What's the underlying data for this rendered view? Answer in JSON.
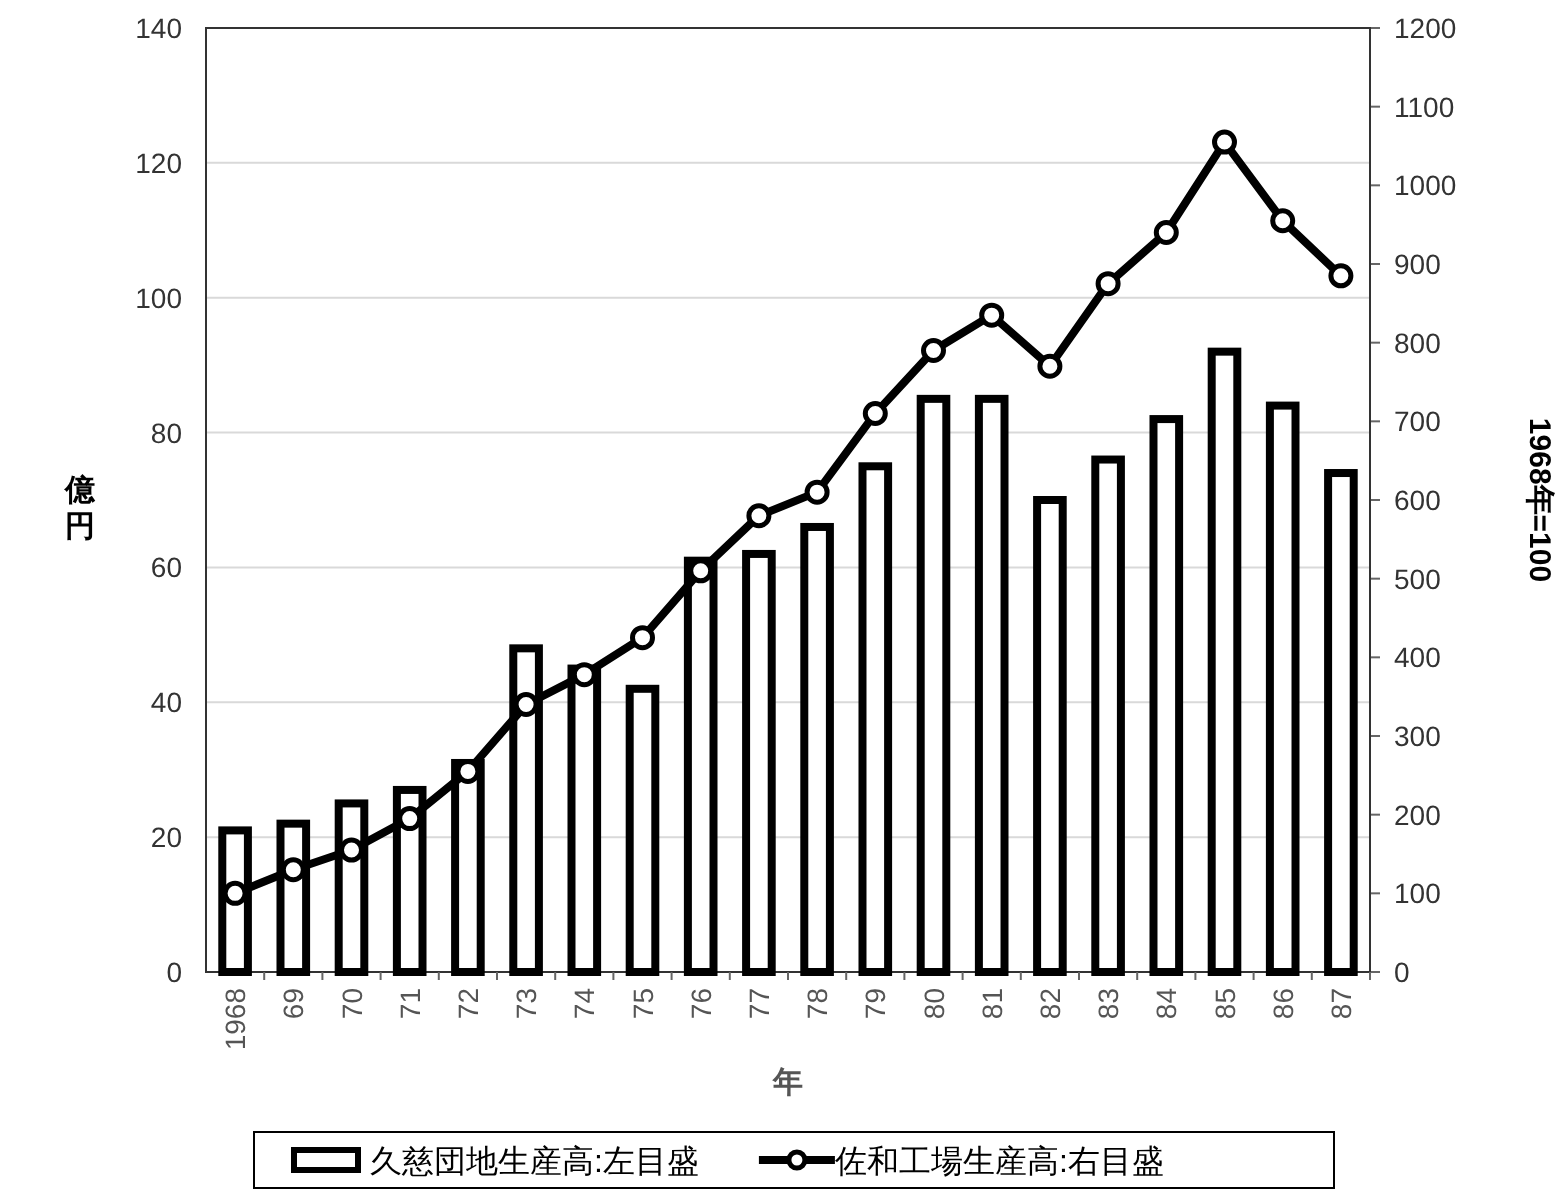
{
  "chart_data": {
    "type": "bar",
    "xlabel": "年",
    "ylabel": "億円",
    "y2label": "1968年=100",
    "categories": [
      "1968",
      "69",
      "70",
      "71",
      "72",
      "73",
      "74",
      "75",
      "76",
      "77",
      "78",
      "79",
      "80",
      "81",
      "82",
      "83",
      "84",
      "85",
      "86",
      "87"
    ],
    "series": [
      {
        "name": "久慈団地生産高:左目盛",
        "color": "#ffffff",
        "values": [
          21,
          22,
          25,
          27,
          31,
          48,
          45,
          42,
          61,
          62,
          66,
          75,
          85,
          85,
          70,
          76,
          82,
          92,
          84,
          74
        ]
      },
      {
        "name": "佐和工場生産高:右目盛",
        "type": "line",
        "axis": "y2",
        "color": "#000000",
        "marker": "circle",
        "values": [
          100,
          130,
          155,
          195,
          255,
          340,
          378,
          425,
          510,
          580,
          610,
          710,
          790,
          835,
          770,
          875,
          940,
          1055,
          955,
          885
        ]
      }
    ],
    "ylim": [
      0,
      140
    ],
    "yticks": [
      0,
      20,
      40,
      60,
      80,
      100,
      120,
      140
    ],
    "y2lim": [
      0,
      1200
    ],
    "y2ticks": [
      0,
      100,
      200,
      300,
      400,
      500,
      600,
      700,
      800,
      900,
      1000,
      1100,
      1200
    ],
    "grid": "y",
    "legend": "bottom"
  }
}
